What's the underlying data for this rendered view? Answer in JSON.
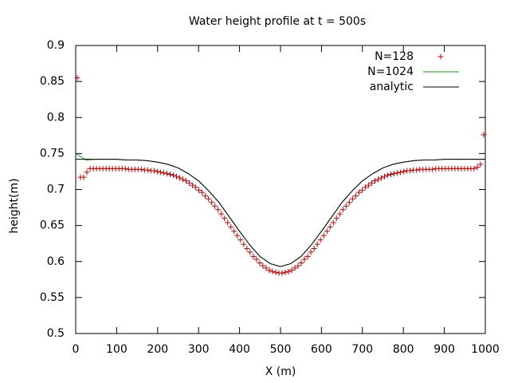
{
  "chart_data": {
    "type": "line",
    "title": "Water height profile at t = 500s",
    "x_label": "X (m)",
    "y_label": "height(m)",
    "xlim": [
      0,
      1000
    ],
    "xticks": [
      0,
      100,
      200,
      300,
      400,
      500,
      600,
      700,
      800,
      900,
      1000
    ],
    "ylim": [
      0.5,
      0.9
    ],
    "yticks": [
      0.5,
      0.55,
      0.6,
      0.65,
      0.7,
      0.75,
      0.8,
      0.85,
      0.9
    ],
    "grid": false,
    "legend": "top-right",
    "series": [
      {
        "name": "N=128",
        "style": "points",
        "color": "#cc0000",
        "x": [
          3.9,
          11.7,
          19.5,
          27.3,
          35.2,
          43.0,
          50.8,
          58.6,
          66.4,
          74.2,
          82.0,
          89.8,
          97.7,
          105.5,
          113.3,
          121.1,
          128.9,
          136.7,
          144.5,
          152.3,
          160.2,
          168.0,
          175.8,
          183.6,
          191.4,
          199.2,
          207.0,
          214.8,
          222.7,
          230.5,
          238.3,
          246.1,
          253.9,
          261.7,
          269.5,
          277.3,
          285.2,
          293.0,
          300.8,
          308.6,
          316.4,
          324.2,
          332.0,
          339.8,
          347.7,
          355.5,
          363.3,
          371.1,
          378.9,
          386.7,
          394.5,
          402.3,
          410.2,
          418.0,
          425.8,
          433.6,
          441.4,
          449.2,
          457.0,
          464.8,
          472.7,
          480.5,
          488.3,
          496.1,
          503.9,
          511.7,
          519.5,
          527.3,
          535.2,
          543.0,
          550.8,
          558.6,
          566.4,
          574.2,
          582.0,
          589.8,
          597.7,
          605.5,
          613.3,
          621.1,
          628.9,
          636.7,
          644.5,
          652.3,
          660.2,
          668.0,
          675.8,
          683.6,
          691.4,
          699.2,
          707.0,
          714.8,
          722.7,
          730.5,
          738.3,
          746.1,
          753.9,
          761.7,
          769.5,
          777.3,
          785.2,
          793.0,
          800.8,
          808.6,
          816.4,
          824.2,
          832.0,
          839.8,
          847.7,
          855.5,
          863.3,
          871.1,
          878.9,
          886.7,
          894.5,
          902.3,
          910.2,
          918.0,
          925.8,
          933.6,
          941.4,
          949.2,
          957.0,
          964.8,
          972.7,
          980.5,
          988.3,
          996.1
        ],
        "values": [
          0.855,
          0.717,
          0.717,
          0.724,
          0.729,
          0.729,
          0.729,
          0.729,
          0.729,
          0.729,
          0.729,
          0.729,
          0.729,
          0.729,
          0.729,
          0.729,
          0.728,
          0.728,
          0.728,
          0.728,
          0.728,
          0.727,
          0.727,
          0.726,
          0.726,
          0.725,
          0.724,
          0.723,
          0.722,
          0.721,
          0.72,
          0.718,
          0.716,
          0.714,
          0.712,
          0.709,
          0.706,
          0.703,
          0.699,
          0.696,
          0.691,
          0.687,
          0.682,
          0.677,
          0.672,
          0.666,
          0.66,
          0.654,
          0.648,
          0.642,
          0.636,
          0.63,
          0.624,
          0.618,
          0.613,
          0.607,
          0.603,
          0.598,
          0.594,
          0.591,
          0.588,
          0.586,
          0.585,
          0.584,
          0.584,
          0.585,
          0.586,
          0.588,
          0.591,
          0.594,
          0.598,
          0.603,
          0.607,
          0.613,
          0.618,
          0.624,
          0.63,
          0.636,
          0.642,
          0.648,
          0.654,
          0.66,
          0.666,
          0.672,
          0.677,
          0.682,
          0.687,
          0.691,
          0.696,
          0.699,
          0.703,
          0.706,
          0.709,
          0.712,
          0.714,
          0.716,
          0.718,
          0.72,
          0.721,
          0.722,
          0.723,
          0.724,
          0.725,
          0.726,
          0.726,
          0.727,
          0.727,
          0.728,
          0.728,
          0.728,
          0.728,
          0.728,
          0.729,
          0.729,
          0.729,
          0.729,
          0.729,
          0.729,
          0.729,
          0.729,
          0.729,
          0.729,
          0.729,
          0.729,
          0.729,
          0.731,
          0.735,
          0.776
        ]
      },
      {
        "name": "N=1024",
        "style": "lines",
        "color": "#00a000",
        "x": [
          0,
          25,
          50,
          75,
          100,
          125,
          150,
          175,
          200,
          225,
          250,
          275,
          300,
          325,
          350,
          375,
          400,
          425,
          450,
          475,
          500,
          525,
          550,
          575,
          600,
          625,
          650,
          675,
          700,
          725,
          750,
          775,
          800,
          825,
          850,
          875,
          900,
          925,
          950,
          975,
          1000
        ],
        "values": [
          0.75,
          0.741,
          0.742,
          0.742,
          0.742,
          0.741,
          0.741,
          0.74,
          0.738,
          0.735,
          0.73,
          0.722,
          0.712,
          0.698,
          0.682,
          0.662,
          0.642,
          0.623,
          0.607,
          0.597,
          0.593,
          0.597,
          0.607,
          0.623,
          0.642,
          0.662,
          0.682,
          0.698,
          0.712,
          0.722,
          0.73,
          0.735,
          0.738,
          0.74,
          0.741,
          0.741,
          0.742,
          0.742,
          0.742,
          0.742,
          0.742
        ]
      },
      {
        "name": "analytic",
        "style": "lines",
        "color": "#000000",
        "x": [
          0,
          25,
          50,
          75,
          100,
          125,
          150,
          175,
          200,
          225,
          250,
          275,
          300,
          325,
          350,
          375,
          400,
          425,
          450,
          475,
          500,
          525,
          550,
          575,
          600,
          625,
          650,
          675,
          700,
          725,
          750,
          775,
          800,
          825,
          850,
          875,
          900,
          925,
          950,
          975,
          1000
        ],
        "values": [
          0.742,
          0.742,
          0.742,
          0.742,
          0.742,
          0.741,
          0.741,
          0.74,
          0.738,
          0.735,
          0.73,
          0.722,
          0.712,
          0.698,
          0.682,
          0.662,
          0.642,
          0.623,
          0.607,
          0.597,
          0.593,
          0.597,
          0.607,
          0.623,
          0.642,
          0.662,
          0.682,
          0.698,
          0.712,
          0.722,
          0.73,
          0.735,
          0.738,
          0.74,
          0.741,
          0.741,
          0.742,
          0.742,
          0.742,
          0.742,
          0.742
        ]
      }
    ]
  }
}
